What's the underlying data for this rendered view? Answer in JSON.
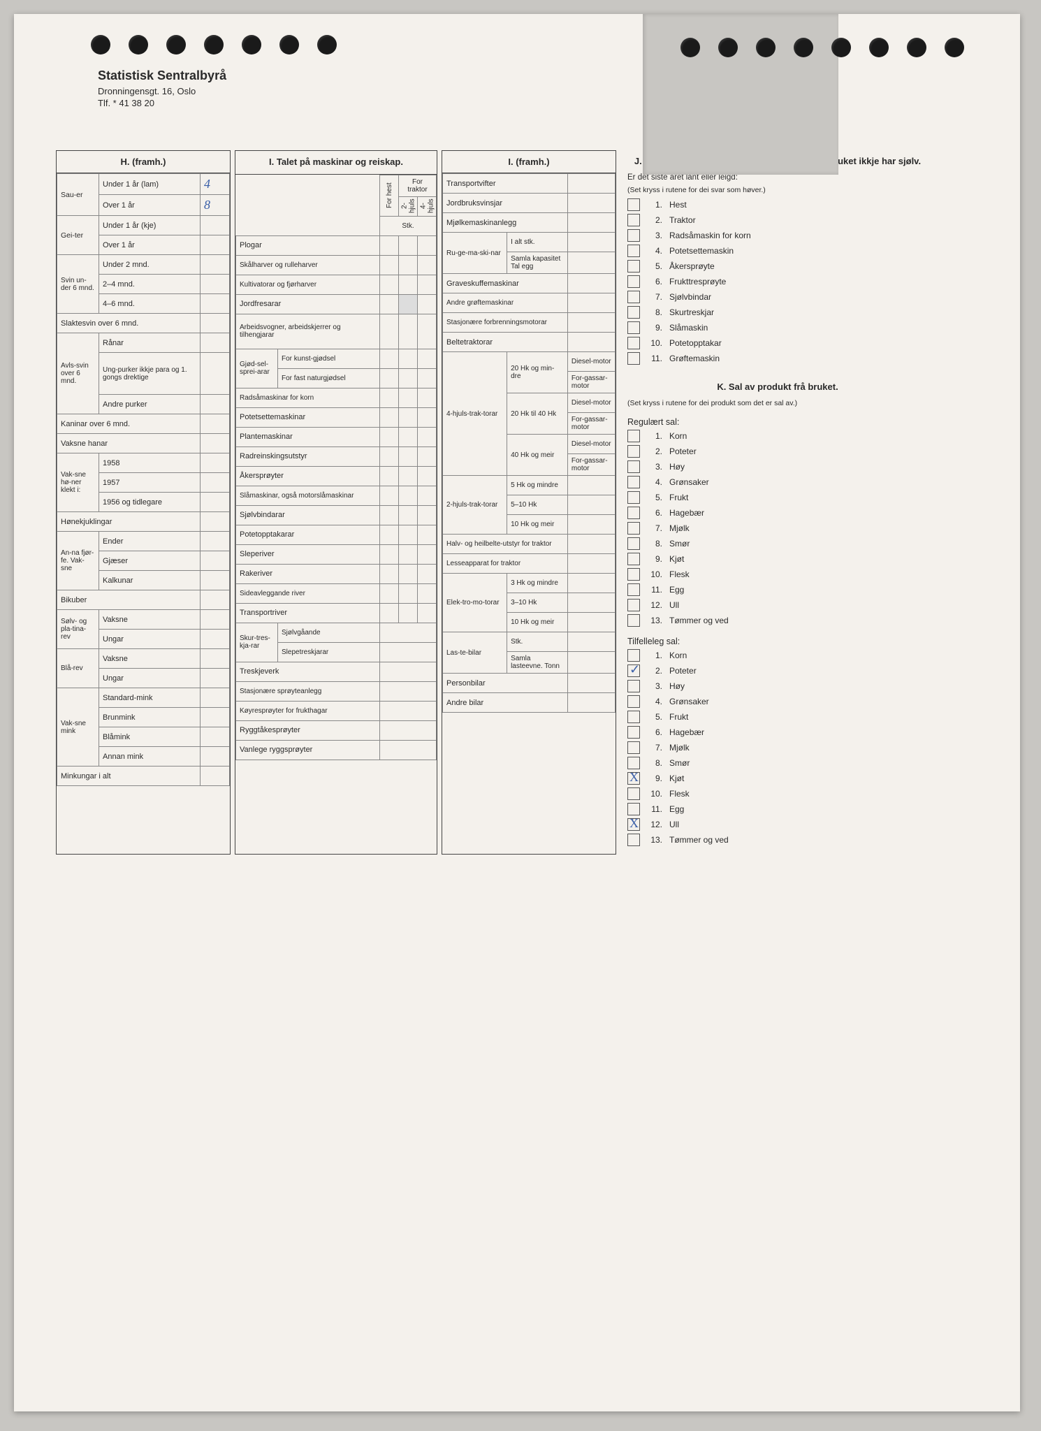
{
  "letterhead": {
    "org": "Statistisk Sentralbyrå",
    "address": "Dronningensgt. 16, Oslo",
    "phone": "Tlf. * 41 38 20"
  },
  "colors": {
    "paper": "#f4f1ec",
    "ink": "#2a2a2a",
    "handwriting": "#3a5fa8",
    "border": "#888888"
  },
  "sectionH": {
    "title": "H. (framh.)",
    "sauer": {
      "label": "Sau-er",
      "rows": [
        {
          "label": "Under 1 år (lam)",
          "value": "4"
        },
        {
          "label": "Over 1 år",
          "value": "8"
        }
      ]
    },
    "geiter": {
      "label": "Gei-ter",
      "rows": [
        {
          "label": "Under 1 år (kje)",
          "value": ""
        },
        {
          "label": "Over 1 år",
          "value": ""
        }
      ]
    },
    "svin_under6": {
      "label": "Svin un-der 6 mnd.",
      "rows": [
        {
          "label": "Under 2 mnd.",
          "value": ""
        },
        {
          "label": "2–4 mnd.",
          "value": ""
        },
        {
          "label": "4–6 mnd.",
          "value": ""
        }
      ]
    },
    "slaktesvin": {
      "label": "Slaktesvin over 6 mnd.",
      "value": ""
    },
    "avlssvin": {
      "label": "Avls-svin over 6 mnd.",
      "ranar": "Rånar",
      "ungpurker": "Ung-purker ikkje para og 1. gongs drektige",
      "andre": "Andre purker"
    },
    "kaninar": {
      "label": "Kaninar over 6 mnd.",
      "value": ""
    },
    "vaksnehanar": {
      "label": "Vaksne hanar",
      "value": ""
    },
    "honer": {
      "label": "Vak-sne hø-ner klekt i:",
      "rows": [
        {
          "label": "1958",
          "value": ""
        },
        {
          "label": "1957",
          "value": ""
        },
        {
          "label": "1956 og tidlegare",
          "value": ""
        }
      ]
    },
    "honekjuklingar": {
      "label": "Hønekjuklingar",
      "value": ""
    },
    "annafjorfe": {
      "label": "An-na fjør-fe. Vak-sne",
      "rows": [
        {
          "label": "Ender",
          "value": ""
        },
        {
          "label": "Gjæser",
          "value": ""
        },
        {
          "label": "Kalkunar",
          "value": ""
        }
      ]
    },
    "bikuber": {
      "label": "Bikuber",
      "value": ""
    },
    "solvrev": {
      "label": "Sølv- og pla-tina-rev",
      "rows": [
        {
          "label": "Vaksne"
        },
        {
          "label": "Ungar"
        }
      ]
    },
    "blarev": {
      "label": "Blå-rev",
      "rows": [
        {
          "label": "Vaksne"
        },
        {
          "label": "Ungar"
        }
      ]
    },
    "mink": {
      "label": "Vak-sne mink",
      "rows": [
        {
          "label": "Standard-mink"
        },
        {
          "label": "Brunmink"
        },
        {
          "label": "Blåmink"
        },
        {
          "label": "Annan mink"
        }
      ]
    },
    "minkungar": {
      "label": "Minkungar i alt",
      "value": ""
    }
  },
  "sectionI": {
    "title": "I. Talet på maskinar og reiskap.",
    "col_headers": {
      "forhest": "For hest",
      "2hjuls": "2-hjuls",
      "4hjuls": "4-hjuls",
      "fortraktor": "For traktor",
      "stk": "Stk."
    },
    "items_simple": [
      "Plogar",
      "Skålharver og rulleharver",
      "Kultivatorar og fjørharver",
      "Jordfresarar",
      "Arbeidsvogner, arbeidskjerrer og tilhengjarar"
    ],
    "gjodsel": {
      "label": "Gjød-sel-sprei-arar",
      "rows": [
        "For kunst-gjødsel",
        "For fast naturgjødsel"
      ]
    },
    "items_simple2": [
      "Radsåmaskinar for korn",
      "Potetsettemaskinar",
      "Plantemaskinar",
      "Radreinskingsutstyr",
      "Åkersprøyter",
      "Slåmaskinar, også motorslåmaskinar",
      "Sjølvbindarar",
      "Potetopptakarar",
      "Sleperiver",
      "Rakeriver",
      "Sideavleggande river",
      "Transportriver"
    ],
    "skurtreskjarar": {
      "label": "Skur-tres-kja-rar",
      "rows": [
        "Sjølvgåande",
        "Slepetreskjarar"
      ]
    },
    "items_simple3": [
      "Treskjeverk",
      "Stasjonære sprøyteanlegg",
      "Køyresprøyter for frukthagar",
      "Ryggtåkesprøyter",
      "Vanlege ryggsprøyter"
    ]
  },
  "sectionI2": {
    "title": "I. (framh.)",
    "rows_top": [
      "Transportvifter",
      "Jordbruksvinsjar",
      "Mjølkemaskinanlegg"
    ],
    "rugemaskinar": {
      "label": "Ru-ge-ma-ski-nar",
      "rows": [
        "I alt stk.",
        "Samla kapasitet Tal egg"
      ]
    },
    "rows_mid": [
      "Graveskuffemaskinar",
      "Andre grøftemaskinar",
      "Stasjonære forbrenningsmotorar",
      "Beltetraktorar"
    ],
    "trak4": {
      "label": "4-hjuls-trak-torar",
      "groups": [
        {
          "hk": "20 Hk og min-dre",
          "rows": [
            "Diesel-motor",
            "For-gassar-motor"
          ]
        },
        {
          "hk": "20 Hk til 40 Hk",
          "rows": [
            "Diesel-motor",
            "For-gassar-motor"
          ]
        },
        {
          "hk": "40 Hk og meir",
          "rows": [
            "Diesel-motor",
            "For-gassar-motor"
          ]
        }
      ]
    },
    "trak2": {
      "label": "2-hjuls-trak-torar",
      "rows": [
        "5 Hk og mindre",
        "5–10 Hk",
        "10 Hk og meir"
      ]
    },
    "halvbelte": "Halv- og heilbelte-utstyr for traktor",
    "lesseapparat": "Lesseapparat for traktor",
    "elektro": {
      "label": "Elek-tro-mo-torar",
      "rows": [
        "3 Hk og mindre",
        "3–10 Hk",
        "10 Hk og meir"
      ]
    },
    "lastebilar": {
      "label": "Las-te-bilar",
      "rows": [
        "Stk.",
        "Samla lasteevne. Tonn"
      ]
    },
    "rows_bot": [
      "Personbilar",
      "Andre bilar"
    ]
  },
  "sectionJ": {
    "title": "J. Lån og leige av trekkraft og maskinar som bruket ikkje har sjølv.",
    "sub": "Er det siste året lånt eller leigd:",
    "note": "(Set kryss i rutene for dei svar som høver.)",
    "items": [
      "Hest",
      "Traktor",
      "Radsåmaskin for korn",
      "Potetsettemaskin",
      "Åkersprøyte",
      "Frukttresprøyte",
      "Sjølvbindar",
      "Skurtreskjar",
      "Slåmaskin",
      "Potetopptakar",
      "Grøftemaskin"
    ]
  },
  "sectionK": {
    "title": "K. Sal av produkt frå bruket.",
    "note": "(Set kryss i rutene for dei produkt som det er sal av.)",
    "regular_head": "Regulært sal:",
    "items": [
      "Korn",
      "Poteter",
      "Høy",
      "Grønsaker",
      "Frukt",
      "Hagebær",
      "Mjølk",
      "Smør",
      "Kjøt",
      "Flesk",
      "Egg",
      "Ull",
      "Tømmer og ved"
    ],
    "tilfelle_head": "Tilfelleleg sal:",
    "tilfelle_marks": {
      "2": "✓",
      "9": "X",
      "12": "X"
    }
  }
}
